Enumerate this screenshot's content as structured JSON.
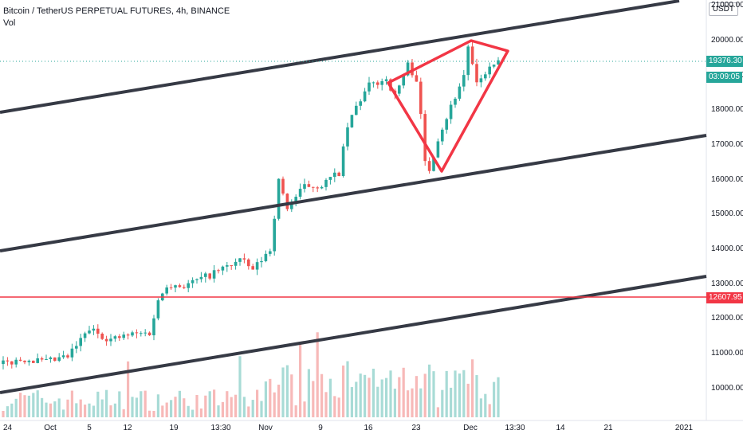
{
  "title": "Bitcoin / TetherUS PERPETUAL FUTURES, 4h, BINANCE",
  "indicator": "Vol",
  "currency": "USDT",
  "colors": {
    "up": "#26a69a",
    "down": "#ef5350",
    "trendline": "#363a45",
    "pattern": "#f23645",
    "level": "#f23645",
    "price_tag": "#26a69a"
  },
  "chart_data": {
    "type": "candlestick",
    "y_ticks": [
      "10000.00",
      "11000.00",
      "12000.00",
      "13000.00",
      "14000.00",
      "15000.00",
      "16000.00",
      "17000.00",
      "18000.00",
      "19000.00",
      "20000.00",
      "21000.00"
    ],
    "x_ticks": [
      "24",
      "Oct",
      "5",
      "12",
      "19",
      "13:30",
      "Nov",
      "9",
      "16",
      "23",
      "Dec",
      "13:30",
      "14",
      "21",
      "2021"
    ],
    "ylim": [
      9200,
      21100
    ],
    "price_path": [
      [
        0,
        10700
      ],
      [
        5,
        10850
      ],
      [
        10,
        10750
      ],
      [
        15,
        10900
      ],
      [
        20,
        11700
      ],
      [
        25,
        11400
      ],
      [
        30,
        11550
      ],
      [
        34,
        11600
      ],
      [
        36,
        12500
      ],
      [
        38,
        13000
      ],
      [
        42,
        12950
      ],
      [
        47,
        13200
      ],
      [
        52,
        13500
      ],
      [
        55,
        13700
      ],
      [
        58,
        13400
      ],
      [
        62,
        14000
      ],
      [
        64,
        15950
      ],
      [
        66,
        15200
      ],
      [
        70,
        15800
      ],
      [
        74,
        15850
      ],
      [
        78,
        16200
      ],
      [
        80,
        17500
      ],
      [
        82,
        18100
      ],
      [
        85,
        18700
      ],
      [
        89,
        18900
      ],
      [
        91,
        18400
      ],
      [
        94,
        19300
      ],
      [
        96,
        18900
      ],
      [
        97,
        17800
      ],
      [
        98,
        16500
      ],
      [
        99,
        16300
      ],
      [
        101,
        17200
      ],
      [
        103,
        17800
      ],
      [
        105,
        18400
      ],
      [
        107,
        19000
      ],
      [
        108,
        19850
      ],
      [
        110,
        18700
      ],
      [
        112,
        19100
      ],
      [
        115,
        19376.3
      ]
    ],
    "current_price": "19376.30",
    "countdown": "03:09:05",
    "horizontal_level": "12607.95"
  }
}
